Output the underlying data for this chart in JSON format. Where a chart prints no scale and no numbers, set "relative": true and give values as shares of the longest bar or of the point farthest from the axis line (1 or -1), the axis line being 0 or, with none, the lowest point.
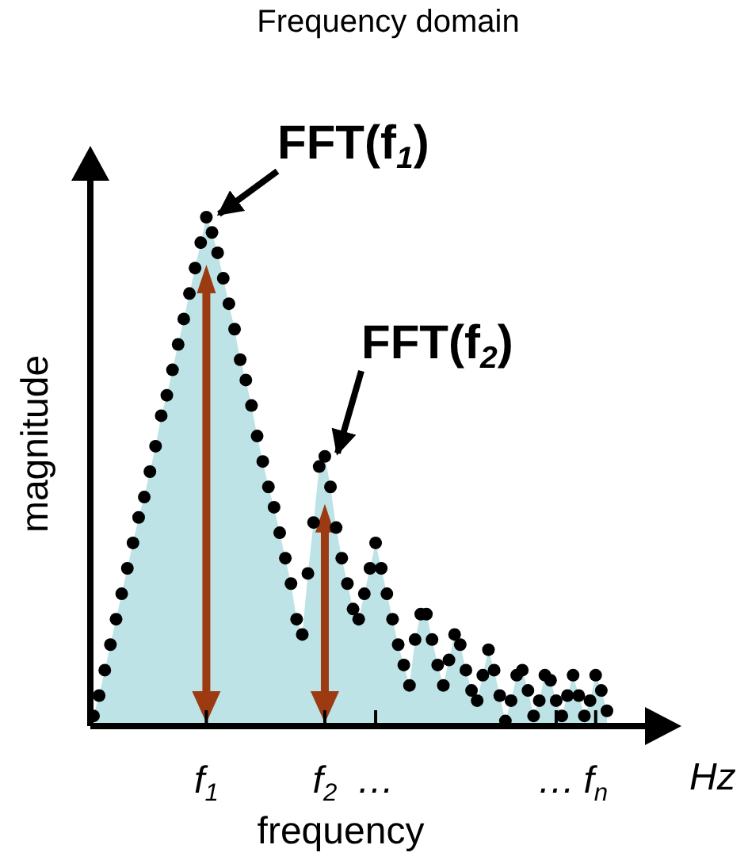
{
  "chart_data": {
    "type": "scatter",
    "title": "Frequency domain",
    "xlabel": "frequency",
    "ylabel": "magnitude",
    "relative": true,
    "categories": [
      null,
      null,
      null,
      null,
      null,
      null,
      null,
      null,
      null,
      null,
      null,
      null,
      null,
      null,
      null,
      null,
      null,
      null,
      null,
      null,
      "f$_{1}$",
      null,
      null,
      null,
      null,
      null,
      null,
      null,
      null,
      null,
      null,
      null,
      null,
      null,
      null,
      null,
      null,
      null,
      null,
      null,
      null,
      "f$_{2}$",
      null,
      null,
      null,
      null,
      null,
      null,
      null,
      null,
      "…",
      null,
      null,
      null,
      null,
      null,
      null,
      null,
      null,
      null,
      null,
      null,
      null,
      null,
      null,
      null,
      null,
      null,
      null,
      null,
      null,
      null,
      null,
      null,
      null,
      null,
      null,
      null,
      null,
      null,
      null,
      null,
      "…",
      null,
      null,
      null,
      null,
      null,
      null,
      "f$_{n}$",
      null,
      null
    ],
    "series": [
      {
        "type": "area",
        "color": "#bde3e6",
        "values": [
          0.02,
          0.06,
          0.11,
          0.16,
          0.21,
          0.26,
          0.31,
          0.36,
          0.41,
          0.45,
          0.5,
          0.55,
          0.61,
          0.65,
          0.7,
          0.75,
          0.8,
          0.85,
          0.9,
          0.95,
          1.0,
          0.97,
          0.93,
          0.88,
          0.83,
          0.78,
          0.72,
          0.68,
          0.63,
          0.57,
          0.52,
          0.47,
          0.43,
          0.38,
          0.33,
          0.28,
          0.21,
          0.18,
          0.3,
          0.4,
          0.51,
          0.53,
          0.47,
          0.39,
          0.33,
          0.28,
          0.23,
          0.21,
          0.26,
          0.31,
          0.36,
          0.31,
          0.26,
          0.21,
          0.16,
          0.12,
          0.08,
          0.17,
          0.22,
          0.22,
          0.17,
          0.12,
          0.08,
          0.13,
          0.18,
          0.16,
          0.11,
          0.07,
          0.05,
          0.1,
          0.15,
          0.11,
          0.06,
          0.01,
          0.05,
          0.1,
          0.11,
          0.07,
          0.02,
          0.05,
          0.1,
          0.09,
          0.05,
          0.02,
          0.06,
          0.1,
          0.06,
          0.02,
          0.05,
          0.1,
          0.07,
          0.03
        ]
      },
      {
        "color": "#000000",
        "marker": "circle",
        "values": [
          0.02,
          0.06,
          0.11,
          0.16,
          0.21,
          0.26,
          0.31,
          0.36,
          0.41,
          0.45,
          0.5,
          0.55,
          0.61,
          0.65,
          0.7,
          0.75,
          0.8,
          0.85,
          0.9,
          0.95,
          1.0,
          0.97,
          0.93,
          0.88,
          0.83,
          0.78,
          0.72,
          0.68,
          0.63,
          0.57,
          0.52,
          0.47,
          0.43,
          0.38,
          0.33,
          0.28,
          0.21,
          0.18,
          0.3,
          0.4,
          0.51,
          0.53,
          0.47,
          0.39,
          0.33,
          0.28,
          0.23,
          0.21,
          0.26,
          0.31,
          0.36,
          0.31,
          0.26,
          0.21,
          0.16,
          0.12,
          0.08,
          0.17,
          0.22,
          0.22,
          0.17,
          0.12,
          0.08,
          0.13,
          0.18,
          0.16,
          0.11,
          0.07,
          0.05,
          0.1,
          0.15,
          0.11,
          0.06,
          0.01,
          0.05,
          0.1,
          0.11,
          0.07,
          0.02,
          0.05,
          0.1,
          0.09,
          0.05,
          0.02,
          0.06,
          0.1,
          0.06,
          0.02,
          0.05,
          0.1,
          0.07,
          0.03
        ]
      }
    ],
    "annotations": [
      {
        "text": "FFT(f$_{1}$)",
        "x": "f$_{1}$",
        "y": 1.0
      },
      {
        "text": "FFT(f$_{2}$)",
        "x": "f$_{2}$",
        "y": 0.53
      },
      "Hz"
    ]
  }
}
